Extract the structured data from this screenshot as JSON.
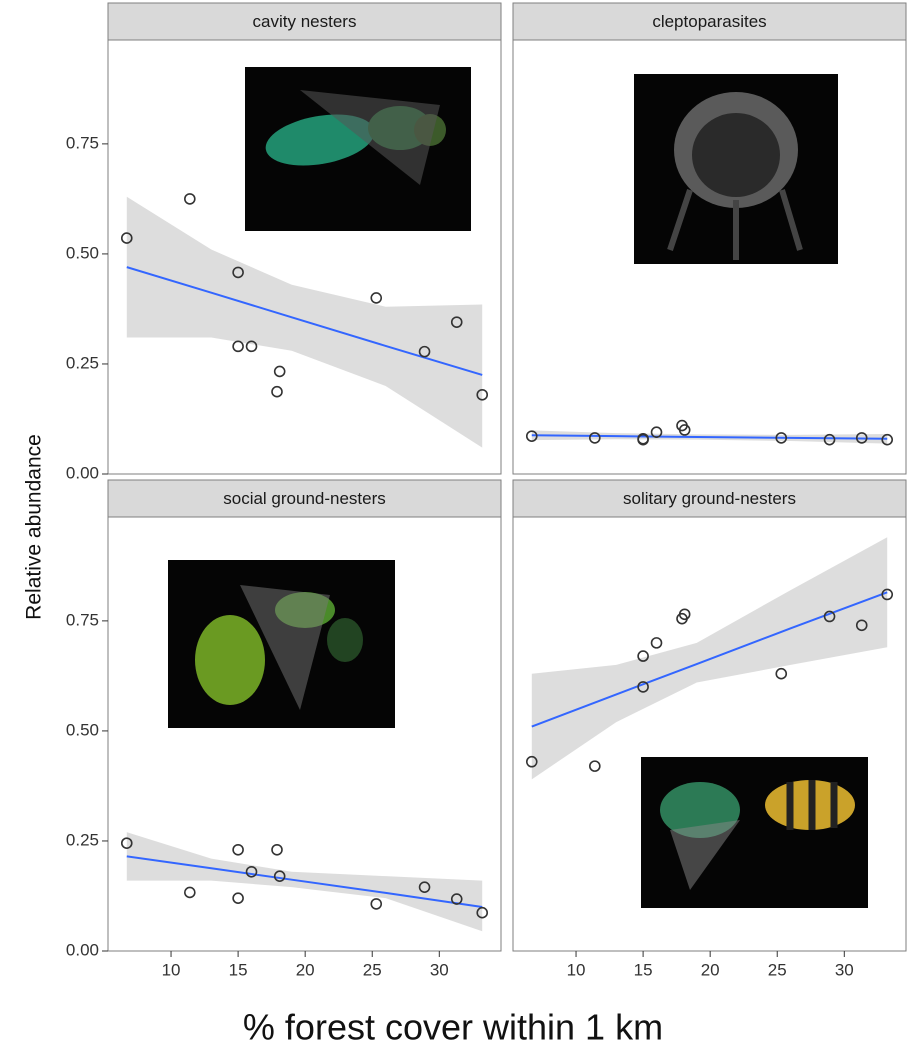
{
  "chart_data": {
    "type": "scatter",
    "y_label": "Relative abundance",
    "x_label": "% forest cover within 1 km",
    "xlim": [
      5.3,
      34.6
    ],
    "ylim": [
      0,
      0.986
    ],
    "xticks": [
      10,
      15,
      20,
      25,
      30
    ],
    "yticks": [
      {
        "value": 0,
        "label": "0.00"
      },
      {
        "value": 0.25,
        "label": "0.25"
      },
      {
        "value": 0.5,
        "label": "0.50"
      },
      {
        "value": 0.75,
        "label": "0.75"
      }
    ],
    "x": [
      6.7,
      11.4,
      15,
      15,
      16,
      17.9,
      18.1,
      25.3,
      28.9,
      31.3,
      33.2
    ],
    "point_color": "#333333",
    "line_color": "#3366ff",
    "band_color": "#d9d9d9",
    "panels": [
      {
        "title": "cavity nesters",
        "values": [
          0.536,
          0.625,
          0.458,
          0.29,
          0.29,
          0.187,
          0.233,
          0.4,
          0.278,
          0.345,
          0.18
        ],
        "fit": {
          "x": [
            6.7,
            13,
            19,
            26,
            33.2
          ],
          "y": [
            0.47,
            0.412,
            0.356,
            0.291,
            0.225
          ],
          "lower": [
            0.31,
            0.31,
            0.28,
            0.2,
            0.06
          ],
          "upper": [
            0.63,
            0.51,
            0.43,
            0.38,
            0.385
          ]
        }
      },
      {
        "title": "cleptoparasites",
        "values": [
          0.086,
          0.082,
          0.08,
          0.078,
          0.095,
          0.11,
          0.1,
          0.082,
          0.078,
          0.082,
          0.078
        ],
        "fit": {
          "x": [
            6.7,
            13,
            19,
            26,
            33.2
          ],
          "y": [
            0.088,
            0.086,
            0.084,
            0.082,
            0.08
          ],
          "lower": [
            0.077,
            0.079,
            0.078,
            0.075,
            0.069
          ],
          "upper": [
            0.099,
            0.093,
            0.09,
            0.089,
            0.091
          ]
        }
      },
      {
        "title": "social ground-nesters",
        "values": [
          0.245,
          0.133,
          0.23,
          0.12,
          0.18,
          0.23,
          0.17,
          0.107,
          0.145,
          0.118,
          0.087
        ],
        "fit": {
          "x": [
            6.7,
            13,
            19,
            26,
            33.2
          ],
          "y": [
            0.215,
            0.188,
            0.162,
            0.132,
            0.1
          ],
          "lower": [
            0.16,
            0.16,
            0.145,
            0.12,
            0.045
          ],
          "upper": [
            0.27,
            0.21,
            0.18,
            0.17,
            0.16
          ]
        }
      },
      {
        "title": "solitary ground-nesters",
        "values": [
          0.43,
          0.42,
          0.67,
          0.6,
          0.7,
          0.755,
          0.765,
          0.63,
          0.76,
          0.74,
          0.81
        ],
        "fit": {
          "x": [
            6.7,
            13,
            19,
            26,
            33.2
          ],
          "y": [
            0.51,
            0.583,
            0.652,
            0.733,
            0.815
          ],
          "lower": [
            0.39,
            0.52,
            0.61,
            0.65,
            0.69
          ],
          "upper": [
            0.63,
            0.65,
            0.7,
            0.82,
            0.94
          ]
        }
      }
    ]
  }
}
